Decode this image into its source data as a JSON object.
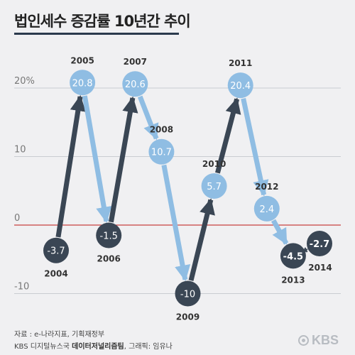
{
  "header": {
    "title": "법인세수 증감률 10년간 추이"
  },
  "chart_data": {
    "type": "line",
    "title": "법인세수 증감률 10년간 추이",
    "xlabel": "",
    "ylabel": "",
    "ylim": [
      -12,
      22
    ],
    "grid": true,
    "x": [
      2004,
      2005,
      2006,
      2007,
      2008,
      2009,
      2010,
      2011,
      2012,
      2013,
      2014
    ],
    "values": [
      -3.7,
      20.8,
      -1.5,
      20.6,
      10.7,
      -10,
      5.7,
      20.4,
      2.4,
      -4.5,
      -2.7
    ],
    "value_labels": [
      "-3.7",
      "20.8",
      "-1.5",
      "20.6",
      "10.7",
      "-10",
      "5.7",
      "20.4",
      "2.4",
      "-4.5",
      "-2.7"
    ],
    "year_labels": [
      "2004",
      "2005",
      "2006",
      "2007",
      "2008",
      "2009",
      "2010",
      "2011",
      "2012",
      "2013",
      "2014"
    ],
    "y_ticks": [
      {
        "value": 20,
        "label": "20%"
      },
      {
        "value": 10,
        "label": "10"
      },
      {
        "value": 0,
        "label": "0"
      },
      {
        "value": -10,
        "label": "-10"
      }
    ]
  },
  "colors": {
    "positive": "#8fbde3",
    "negative": "#3a4654",
    "zero_line": "#c84040",
    "grid": "#c9ccd1"
  },
  "footer": {
    "source": "자료 : e-나라지표, 기획재정부",
    "credit_prefix": "KBS 디지털뉴스국",
    "credit_team": "데이터저널리즘팀",
    "credit_suffix": ", 그래픽: 임유나",
    "logo": "KBS"
  }
}
